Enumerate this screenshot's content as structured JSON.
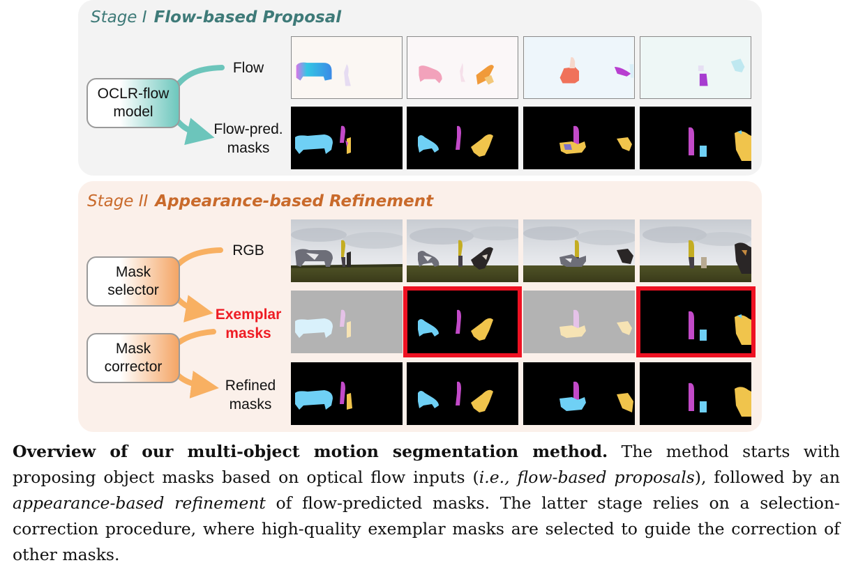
{
  "stage1": {
    "number": "Stage I",
    "name": "Flow-based Proposal",
    "model_label": [
      "OCLR-flow",
      "model"
    ],
    "row_labels": {
      "flow": "Flow",
      "pred": [
        "Flow-pred.",
        "masks"
      ]
    }
  },
  "stage2": {
    "number": "Stage II",
    "name": "Appearance-based Refinement",
    "selector_label": [
      "Mask",
      "selector"
    ],
    "corrector_label": [
      "Mask",
      "corrector"
    ],
    "row_labels": {
      "rgb": "RGB",
      "exemplar": [
        "Exemplar",
        "masks"
      ],
      "refined": [
        "Refined",
        "masks"
      ]
    }
  },
  "colors": {
    "stage1_accent": "#3e7a78",
    "stage2_accent": "#c96a2b",
    "teal_arrow": "#6cc5bb",
    "orange_arrow": "#f8b062",
    "exemplar_red": "#ee1c24",
    "mask_blue": "#6fd0f5",
    "mask_magenta": "#c24ac8",
    "mask_yellow": "#f0c44c"
  },
  "exemplar_selected": [
    false,
    true,
    false,
    true
  ],
  "caption": {
    "bold": "Overview of our multi-object motion segmentation method.",
    "p1": " The method starts with proposing object masks based on optical flow inputs (",
    "i1": "i.e., flow-based proposals",
    "p2": "), followed by an ",
    "i2": "appearance-based refinement",
    "p3": " of flow-predicted masks. The latter stage relies on a selection-correction procedure, where high-quality exemplar masks are selected to guide the correction of other masks."
  }
}
